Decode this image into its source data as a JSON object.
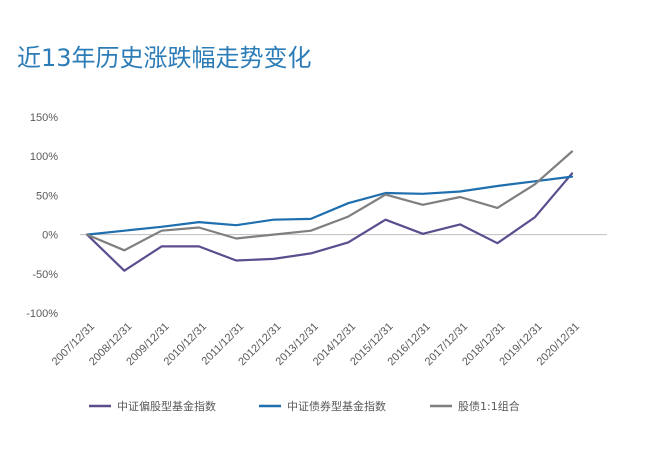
{
  "chart_data": {
    "type": "line",
    "title": "近13年历史涨跌幅走势变化",
    "xlabel": "",
    "ylabel": "",
    "ylim": [
      -100,
      150
    ],
    "yticks": [
      150,
      100,
      50,
      0,
      -50,
      -100
    ],
    "ytick_labels": [
      "150%",
      "100%",
      "50%",
      "0%",
      "-50%",
      "-100%"
    ],
    "x": [
      "2007/12/31",
      "2008/12/31",
      "2009/12/31",
      "2010/12/31",
      "2011/12/31",
      "2012/12/31",
      "2013/12/31",
      "2014/12/31",
      "2015/12/31",
      "2016/12/31",
      "2017/12/31",
      "2018/12/31",
      "2019/12/31",
      "2020/12/31"
    ],
    "grid": false,
    "legend_position": "bottom",
    "series": [
      {
        "name": "中证偏股型基金指数",
        "color": "#5b4d8e",
        "values": [
          0,
          -46,
          -15,
          -15,
          -33,
          -31,
          -24,
          -10,
          19,
          1,
          13,
          -11,
          22,
          78
        ]
      },
      {
        "name": "中证债券型基金指数",
        "color": "#1f6fae",
        "values": [
          0,
          5,
          10,
          16,
          12,
          19,
          20,
          40,
          53,
          52,
          55,
          62,
          68,
          74
        ]
      },
      {
        "name": "股债1:1组合",
        "color": "#7f7f7f",
        "values": [
          0,
          -20,
          5,
          9,
          -5,
          0,
          5,
          23,
          51,
          38,
          48,
          34,
          64,
          106
        ]
      }
    ]
  }
}
